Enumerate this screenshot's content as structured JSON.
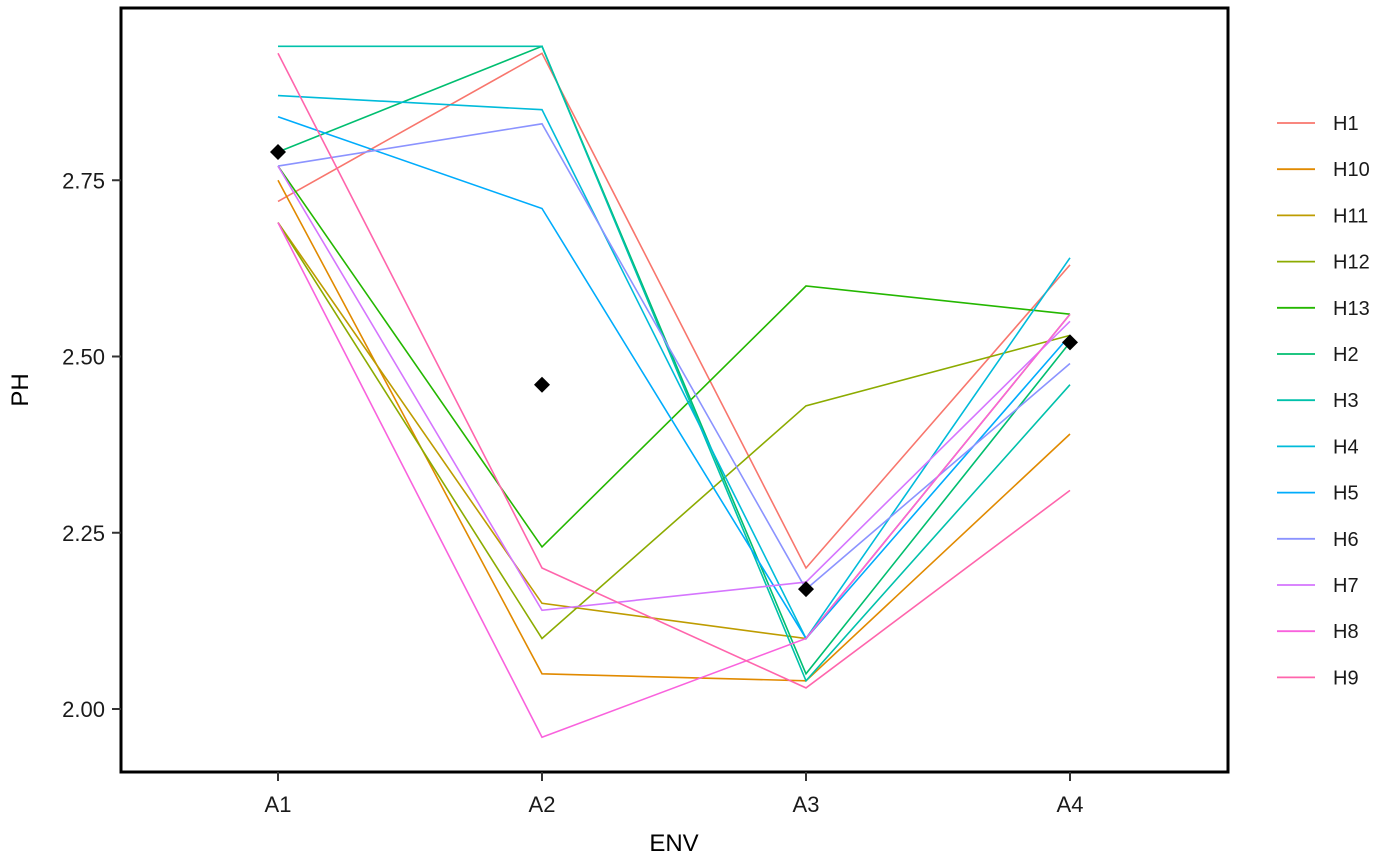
{
  "chart_data": {
    "type": "line",
    "xlabel": "ENV",
    "ylabel": "PH",
    "categories": [
      "A1",
      "A2",
      "A3",
      "A4"
    ],
    "ylim": [
      1.91,
      3.0
    ],
    "yticks": [
      2.0,
      2.25,
      2.5,
      2.75
    ],
    "ytick_labels": [
      "2.00",
      "2.25",
      "2.50",
      "2.75"
    ],
    "grid": false,
    "legend_placement": "right",
    "series": [
      {
        "name": "H1",
        "color": "#F8766D",
        "values": [
          2.72,
          2.93,
          2.2,
          2.63
        ]
      },
      {
        "name": "H10",
        "color": "#E18A00",
        "values": [
          2.75,
          2.05,
          2.04,
          2.39
        ]
      },
      {
        "name": "H11",
        "color": "#BE9C00",
        "values": [
          2.69,
          2.15,
          2.1,
          2.56
        ]
      },
      {
        "name": "H12",
        "color": "#8CAB00",
        "values": [
          2.69,
          2.1,
          2.43,
          2.53
        ]
      },
      {
        "name": "H13",
        "color": "#24B700",
        "values": [
          2.77,
          2.23,
          2.6,
          2.56
        ]
      },
      {
        "name": "H2",
        "color": "#00BE70",
        "values": [
          2.79,
          2.94,
          2.05,
          2.52
        ]
      },
      {
        "name": "H3",
        "color": "#00C1AB",
        "values": [
          2.94,
          2.94,
          2.04,
          2.46
        ]
      },
      {
        "name": "H4",
        "color": "#00BBDA",
        "values": [
          2.87,
          2.85,
          2.1,
          2.64
        ]
      },
      {
        "name": "H5",
        "color": "#00ACFC",
        "values": [
          2.84,
          2.71,
          2.1,
          2.53
        ]
      },
      {
        "name": "H6",
        "color": "#8B93FF",
        "values": [
          2.77,
          2.83,
          2.17,
          2.49
        ]
      },
      {
        "name": "H7",
        "color": "#D575FE",
        "values": [
          2.77,
          2.14,
          2.18,
          2.55
        ]
      },
      {
        "name": "H8",
        "color": "#F962DD",
        "values": [
          2.69,
          1.96,
          2.1,
          2.56
        ]
      },
      {
        "name": "H9",
        "color": "#FF65AC",
        "values": [
          2.93,
          2.2,
          2.03,
          2.31
        ]
      }
    ],
    "mean_points": {
      "marker": "diamond",
      "color": "#000000",
      "values": [
        2.79,
        2.46,
        2.17,
        2.52
      ]
    }
  }
}
